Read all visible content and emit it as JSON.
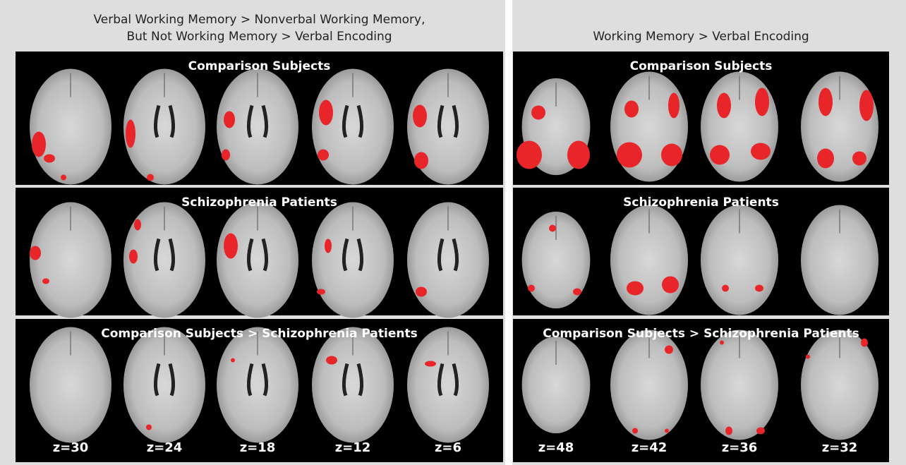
{
  "figure": {
    "panels": [
      {
        "title": "Verbal Working Memory > Nonverbal Working Memory,\nBut Not Working Memory > Verbal Encoding",
        "rows": [
          {
            "title": "Comparison Subjects"
          },
          {
            "title": "Schizophrenia Patients"
          },
          {
            "title": "Comparison Subjects > Schizophrenia Patients"
          }
        ],
        "slice_labels": [
          "z=30",
          "z=24",
          "z=18",
          "z=12",
          "z=6"
        ]
      },
      {
        "title": "Working Memory > Verbal Encoding",
        "rows": [
          {
            "title": "Comparison Subjects"
          },
          {
            "title": "Schizophrenia Patients"
          },
          {
            "title": "Comparison Subjects > Schizophrenia Patients"
          }
        ],
        "slice_labels": [
          "z=48",
          "z=42",
          "z=36",
          "z=32"
        ]
      }
    ]
  }
}
